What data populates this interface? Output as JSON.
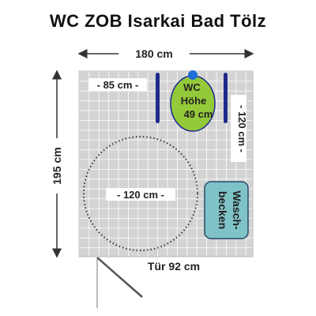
{
  "title": "WC ZOB Isarkai Bad Tölz",
  "dims": {
    "width_label": "180 cm",
    "height_label": "195 cm",
    "inner_width_label": "- 85 cm -",
    "wall_to_wc_label": "- 120 cm -",
    "turning_circle_label": "- 120 cm -",
    "door_label": "Tür 92 cm"
  },
  "wc": {
    "line1": "WC",
    "line2": "Höhe",
    "line3": "49 cm"
  },
  "sink": {
    "line1": "Wasch-",
    "line2": "becken"
  },
  "colors": {
    "wc_fill": "#94c93a",
    "wc_outline": "#1e2a8a",
    "grab_bar": "#1e2a8a",
    "flush_button": "#1f6fd6",
    "sink_fill": "#7fc3c7",
    "sink_outline": "#2a4a6a",
    "floor_tile": "#d3d3d3",
    "tile_line": "#ffffff",
    "wall": "#9a9a9a"
  }
}
